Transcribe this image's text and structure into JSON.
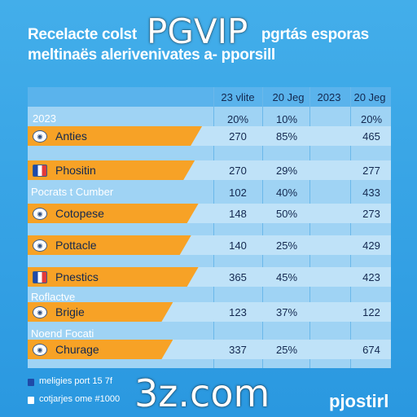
{
  "title_line1": "Recelacte colst",
  "title_line1b": "pgrtás esporas",
  "title_line2": "meltinaës alerivenivates a- pporsill",
  "watermark_top": "PGVIP",
  "watermark_bottom": "3z.com",
  "brand": "pjostirl",
  "colors": {
    "background": "#3aa7e8",
    "bar": "#f7a226",
    "header": "#5ab3ec",
    "table": "#9fd3f4"
  },
  "chart_data": {
    "type": "table",
    "columns": [
      "23 vlite",
      "20 Jeg",
      "2023",
      "20 Jeg"
    ],
    "year_label": "2023",
    "year_values": [
      "20%",
      "10%",
      "",
      "20%"
    ],
    "rows": [
      {
        "label": "Anties",
        "icon": "mask-icon",
        "bar": 0.48,
        "values": [
          "270",
          "85%",
          "",
          "465"
        ]
      },
      {
        "label": "Phositin",
        "icon": "france-flag-icon",
        "bar": 0.46,
        "values": [
          "270",
          "29%",
          "",
          "277"
        ]
      },
      {
        "sublabel": "Pocrats t Cumber",
        "values": [
          "102",
          "40%",
          "",
          "433"
        ]
      },
      {
        "label": "Cotopese",
        "icon": "globe-icon",
        "bar": 0.47,
        "values": [
          "148",
          "50%",
          "",
          "273"
        ]
      },
      {
        "label": "Pottacle",
        "icon": "plane-icon",
        "bar": 0.45,
        "values": [
          "140",
          "25%",
          "",
          "429"
        ]
      },
      {
        "label": "Pnestics",
        "icon": "france-flag-icon",
        "bar": 0.47,
        "values": [
          "365",
          "45%",
          "",
          "423"
        ]
      },
      {
        "sublabel": "Roflactve",
        "values": [
          "",
          "",
          "",
          ""
        ]
      },
      {
        "label": "Brigie",
        "icon": "earth-icon",
        "bar": 0.4,
        "values": [
          "123",
          "37%",
          "",
          "122"
        ]
      },
      {
        "sublabel": "Noend Focati",
        "values": [
          "",
          "",
          "",
          ""
        ]
      },
      {
        "label": "Churage",
        "icon": "mask-icon",
        "bar": 0.4,
        "values": [
          "337",
          "25%",
          "",
          "674"
        ]
      }
    ]
  },
  "legend": [
    {
      "text": "meligies port 15 7f",
      "color": "#1f4aa8"
    },
    {
      "text": "cotjarjes ome #1000",
      "color": "#ffffff"
    }
  ]
}
